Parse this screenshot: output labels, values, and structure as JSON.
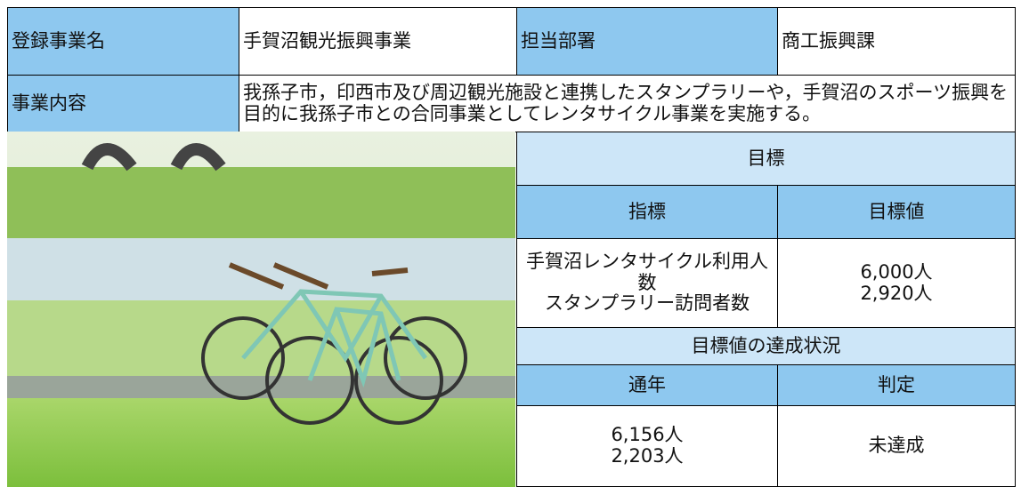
{
  "info_table": {
    "rows": [
      [
        "登録事業名",
        "手賀沼観光振興事業",
        "担当部署",
        "商工振興課"
      ],
      [
        "事業内容",
        "我孫子市，印西市及び周辺観光施設と連携したスタンプラリーや，手賀沼のスポーツ振興を目的に我孫子市との合同事業としてレンタサイクル事業を実施する。"
      ]
    ]
  },
  "goal_table": {
    "title": "目標",
    "headers": [
      "指標",
      "目標値"
    ],
    "indicators": [
      "手賀沼レンタサイクル利用人数",
      "スタンプラリー訪問者数"
    ],
    "targets": [
      "6,000人",
      "2,920人"
    ],
    "achievement_title": "目標値の達成状況",
    "achievement_headers": [
      "通年",
      "判定"
    ],
    "results": [
      "6,156人",
      "2,203人"
    ],
    "judgement": "未達成"
  }
}
